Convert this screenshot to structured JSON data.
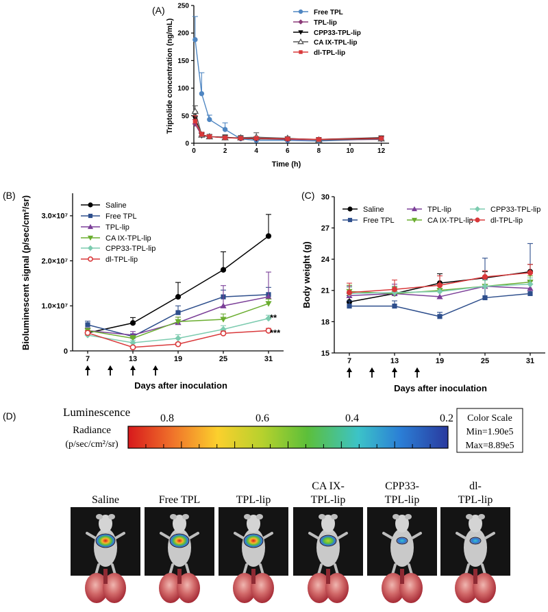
{
  "chart_data": [
    {
      "panel": "(A)",
      "type": "line",
      "xlabel": "Time (h)",
      "ylabel": "Triptolide concentration (ng/mL)",
      "xlim": [
        0,
        12.5
      ],
      "ylim": [
        0,
        250
      ],
      "xticks": [
        0,
        2,
        4,
        6,
        8,
        10,
        12
      ],
      "yticks": [
        0,
        50,
        100,
        150,
        200,
        250
      ],
      "series": [
        {
          "name": "Free TPL",
          "color": "#4f86c2",
          "marker": "circle",
          "x": [
            0.083,
            0.5,
            1,
            2,
            3,
            4,
            6,
            8,
            12
          ],
          "y": [
            188,
            90,
            43,
            25,
            8,
            5,
            5,
            4,
            8
          ],
          "err": [
            42,
            38,
            8,
            12,
            5,
            3,
            3,
            2,
            3
          ]
        },
        {
          "name": "TPL-lip",
          "color": "#8b3a78",
          "marker": "diamond",
          "x": [
            0.083,
            0.5,
            1,
            2,
            3,
            4,
            6,
            8,
            12
          ],
          "y": [
            35,
            14,
            12,
            10,
            9,
            8,
            7,
            6,
            7
          ],
          "err": [
            8,
            4,
            3,
            3,
            3,
            2,
            2,
            2,
            2
          ]
        },
        {
          "name": "CPP33-TPL-lip",
          "color": "#000000",
          "marker": "triangle-down",
          "x": [
            0.083,
            0.5,
            1,
            2,
            3,
            4,
            6,
            8,
            12
          ],
          "y": [
            45,
            14,
            12,
            11,
            9,
            8,
            8,
            7,
            10
          ],
          "err": [
            12,
            5,
            4,
            4,
            3,
            3,
            2,
            2,
            3
          ]
        },
        {
          "name": "CA IX-TPL-lip",
          "color": "#555555",
          "marker": "triangle-up-open",
          "x": [
            0.083,
            0.5,
            1,
            2,
            3,
            4,
            6,
            8,
            12
          ],
          "y": [
            58,
            15,
            12,
            10,
            10,
            11,
            9,
            6,
            8
          ],
          "err": [
            10,
            5,
            4,
            4,
            4,
            8,
            3,
            2,
            3
          ]
        },
        {
          "name": "dl-TPL-lip",
          "color": "#d9383a",
          "marker": "square",
          "x": [
            0.083,
            0.5,
            1,
            2,
            3,
            4,
            6,
            8,
            12
          ],
          "y": [
            40,
            16,
            12,
            10,
            9,
            9,
            8,
            7,
            9
          ],
          "err": [
            10,
            4,
            3,
            3,
            3,
            3,
            2,
            2,
            3
          ]
        }
      ]
    },
    {
      "panel": "(B)",
      "type": "line",
      "xlabel": "Days after inoculation",
      "ylabel": "Bioluminescent signal (p/sec/cm²/sr)",
      "xlim": [
        5,
        33
      ],
      "ylim": [
        0,
        35000000.0
      ],
      "xticks": [
        7,
        13,
        19,
        25,
        31
      ],
      "ytick_values": [
        0,
        10000000.0,
        20000000.0,
        30000000.0
      ],
      "ytick_labels": [
        "0",
        "1.0×10⁷",
        "2.0×10⁷",
        "3.0×10⁷"
      ],
      "arrows_at_days": [
        7,
        10,
        13,
        16
      ],
      "annotations": [
        {
          "text": "**",
          "series": "CPP33-TPL-lip"
        },
        {
          "text": "***",
          "series": "dl-TPL-lip"
        }
      ],
      "series": [
        {
          "name": "Saline",
          "color": "#000000",
          "marker": "circle",
          "x": [
            7,
            13,
            19,
            25,
            31
          ],
          "y": [
            4000000.0,
            6200000.0,
            12000000.0,
            18000000.0,
            25500000.0
          ],
          "err": [
            500000.0,
            1200000.0,
            3200000.0,
            4000000.0,
            4800000.0
          ]
        },
        {
          "name": "Free TPL",
          "color": "#2d4e8c",
          "marker": "square",
          "x": [
            7,
            13,
            19,
            25,
            31
          ],
          "y": [
            5800000.0,
            3200000.0,
            8500000.0,
            12000000.0,
            12500000.0
          ],
          "err": [
            800000.0,
            600000.0,
            1500000.0,
            1500000.0,
            1600000.0
          ]
        },
        {
          "name": "TPL-lip",
          "color": "#7b3f98",
          "marker": "triangle-up",
          "x": [
            7,
            13,
            19,
            25,
            31
          ],
          "y": [
            4500000.0,
            3500000.0,
            6300000.0,
            10000000.0,
            12000000.0
          ],
          "err": [
            600000.0,
            800000.0,
            1200000.0,
            4500000.0,
            5500000.0
          ]
        },
        {
          "name": "CA IX-TPL-lip",
          "color": "#6aad2f",
          "marker": "triangle-down",
          "x": [
            7,
            13,
            19,
            25,
            31
          ],
          "y": [
            4500000.0,
            2800000.0,
            6500000.0,
            7000000.0,
            10500000.0
          ],
          "err": [
            500000.0,
            600000.0,
            1000000.0,
            1200000.0,
            1000000.0
          ]
        },
        {
          "name": "CPP33-TPL-lip",
          "color": "#7ccbaf",
          "marker": "diamond",
          "x": [
            7,
            13,
            19,
            25,
            31
          ],
          "y": [
            3500000.0,
            1800000.0,
            2800000.0,
            4800000.0,
            7200000.0
          ],
          "err": [
            400000.0,
            500000.0,
            800000.0,
            800000.0,
            700000.0
          ]
        },
        {
          "name": "dl-TPL-lip",
          "color": "#d9383a",
          "marker": "circle-open",
          "x": [
            7,
            13,
            19,
            25,
            31
          ],
          "y": [
            4000000.0,
            800000.0,
            1500000.0,
            3900000.0,
            4500000.0
          ],
          "err": [
            500000.0,
            200000.0,
            300000.0,
            500000.0,
            500000.0
          ]
        }
      ]
    },
    {
      "panel": "(C)",
      "type": "line",
      "xlabel": "Days after inoculation",
      "ylabel": "Body weight (g)",
      "xlim": [
        5,
        33
      ],
      "ylim": [
        15,
        30
      ],
      "xticks": [
        7,
        13,
        19,
        25,
        31
      ],
      "yticks": [
        15,
        18,
        21,
        24,
        27,
        30
      ],
      "arrows_at_days": [
        7,
        10,
        13,
        16
      ],
      "series": [
        {
          "name": "Saline",
          "color": "#000000",
          "marker": "circle",
          "x": [
            7,
            13,
            19,
            25,
            31
          ],
          "y": [
            19.9,
            20.7,
            21.7,
            22.2,
            22.8
          ],
          "err": [
            0.6,
            0.7,
            0.9,
            0.6,
            0.7
          ]
        },
        {
          "name": "Free TPL",
          "color": "#2d4e8c",
          "marker": "square",
          "x": [
            7,
            13,
            19,
            25,
            31
          ],
          "y": [
            19.5,
            19.5,
            18.5,
            20.3,
            20.7
          ],
          "err": [
            0.5,
            0.5,
            0.4,
            3.8,
            4.8
          ]
        },
        {
          "name": "TPL-lip",
          "color": "#7b3f98",
          "marker": "triangle-up",
          "x": [
            7,
            13,
            19,
            25,
            31
          ],
          "y": [
            20.5,
            20.7,
            20.4,
            21.4,
            21.2
          ],
          "err": [
            0.9,
            0.9,
            0.8,
            0.7,
            0.7
          ]
        },
        {
          "name": "CA IX-TPL-lip",
          "color": "#6aad2f",
          "marker": "triangle-down",
          "x": [
            7,
            13,
            19,
            25,
            31
          ],
          "y": [
            20.9,
            20.7,
            21.0,
            21.4,
            21.8
          ],
          "err": [
            0.6,
            0.6,
            0.6,
            0.6,
            0.6
          ]
        },
        {
          "name": "CPP33-TPL-lip",
          "color": "#7ccbaf",
          "marker": "diamond",
          "x": [
            7,
            13,
            19,
            25,
            31
          ],
          "y": [
            20.7,
            20.8,
            20.9,
            21.4,
            21.6
          ],
          "err": [
            0.6,
            0.6,
            0.6,
            0.6,
            0.6
          ]
        },
        {
          "name": "dl-TPL-lip",
          "color": "#d9383a",
          "marker": "circle",
          "x": [
            7,
            13,
            19,
            25,
            31
          ],
          "y": [
            20.8,
            21.1,
            21.5,
            22.3,
            22.7
          ],
          "err": [
            0.9,
            0.9,
            0.9,
            0.6,
            0.8
          ]
        }
      ]
    }
  ],
  "panel_d": {
    "label": "(D)",
    "title": "Luminescence",
    "radiance_label": "Radiance",
    "radiance_unit": "(p/sec/cm²/sr)",
    "scale_ticks": [
      "0.8",
      "0.6",
      "0.4",
      "0.2"
    ],
    "color_scale": {
      "title": "Color Scale",
      "min": "Min=1.90e5",
      "max": "Max=8.89e5"
    },
    "groups": [
      {
        "line1": "",
        "line2": "Saline",
        "signal": "high"
      },
      {
        "line1": "",
        "line2": "Free TPL",
        "signal": "high"
      },
      {
        "line1": "",
        "line2": "TPL-lip",
        "signal": "high"
      },
      {
        "line1": "CA IX-",
        "line2": "TPL-lip",
        "signal": "medium"
      },
      {
        "line1": "CPP33-",
        "line2": "TPL-lip",
        "signal": "low"
      },
      {
        "line1": "dl-",
        "line2": "TPL-lip",
        "signal": "low"
      }
    ],
    "colors": {
      "gradient": [
        "#d7191c",
        "#f0732a",
        "#fbd02d",
        "#b6d12d",
        "#5cbf3a",
        "#3cc3c8",
        "#2b7fd6",
        "#2a3a9e"
      ]
    }
  }
}
